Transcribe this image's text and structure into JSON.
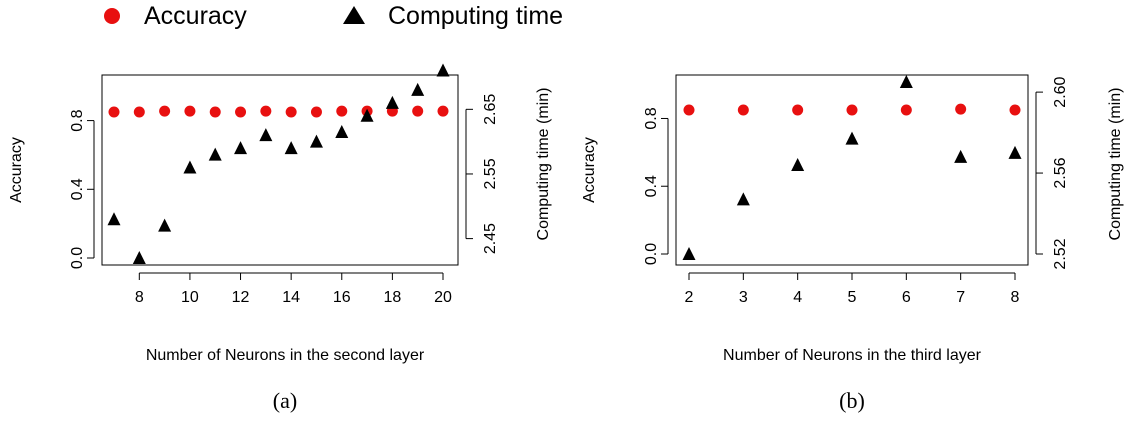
{
  "legend": {
    "items": [
      {
        "label": "Accuracy",
        "marker": "circle",
        "color": "#e81010"
      },
      {
        "label": "Computing time",
        "marker": "triangle",
        "color": "#000000"
      }
    ]
  },
  "chart_data": [
    {
      "type": "scatter",
      "caption": "(a)",
      "xlabel": "Number of Neurons in the second layer",
      "ylabel": "Accuracy",
      "y2label": "Computing time (min)",
      "x": [
        7,
        8,
        9,
        10,
        11,
        12,
        13,
        14,
        15,
        16,
        17,
        18,
        19,
        20
      ],
      "xticks": [
        8,
        10,
        12,
        14,
        16,
        18,
        20
      ],
      "yticks": [
        "0.0",
        "0.4",
        "0.8"
      ],
      "y2ticks": [
        "2.45",
        "2.55",
        "2.65"
      ],
      "xlim": [
        7,
        20
      ],
      "ylim": [
        0,
        0.85
      ],
      "y2lim": [
        2.42,
        2.7
      ],
      "series": [
        {
          "name": "Accuracy",
          "axis": "left",
          "marker": "circle",
          "color": "#e81010",
          "values": [
            0.85,
            0.85,
            0.855,
            0.855,
            0.85,
            0.85,
            0.855,
            0.85,
            0.85,
            0.855,
            0.855,
            0.855,
            0.855,
            0.855
          ]
        },
        {
          "name": "Computing time",
          "axis": "right",
          "marker": "triangle",
          "color": "#000000",
          "values": [
            2.48,
            2.42,
            2.47,
            2.56,
            2.58,
            2.59,
            2.61,
            2.59,
            2.6,
            2.615,
            2.64,
            2.66,
            2.68,
            2.71
          ]
        }
      ]
    },
    {
      "type": "scatter",
      "caption": "(b)",
      "xlabel": "Number of Neurons in the third layer",
      "ylabel": "Accuracy",
      "y2label": "Computing time (min)",
      "x": [
        2,
        3,
        4,
        5,
        6,
        7,
        8
      ],
      "xticks": [
        2,
        3,
        4,
        5,
        6,
        7,
        8
      ],
      "yticks": [
        "0.0",
        "0.4",
        "0.8"
      ],
      "y2ticks": [
        "2.52",
        "2.56",
        "2.60"
      ],
      "xlim": [
        2,
        8
      ],
      "ylim": [
        0,
        0.85
      ],
      "y2lim": [
        2.52,
        2.605
      ],
      "series": [
        {
          "name": "Accuracy",
          "axis": "left",
          "marker": "circle",
          "color": "#e81010",
          "values": [
            0.85,
            0.85,
            0.85,
            0.85,
            0.85,
            0.855,
            0.85
          ]
        },
        {
          "name": "Computing time",
          "axis": "right",
          "marker": "triangle",
          "color": "#000000",
          "values": [
            2.52,
            2.547,
            2.564,
            2.577,
            2.605,
            2.568,
            2.57
          ]
        }
      ]
    }
  ]
}
